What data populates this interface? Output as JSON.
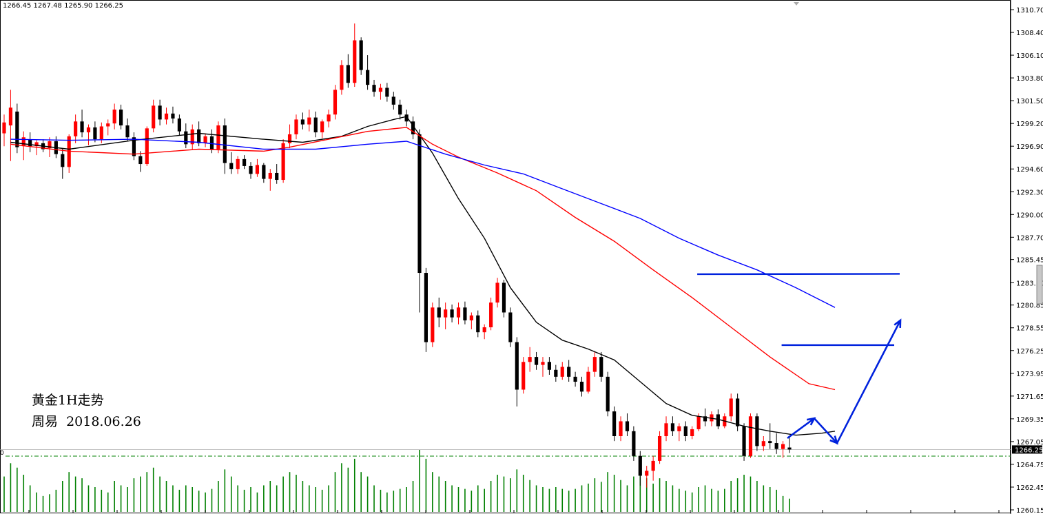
{
  "ohlc_header": "1266.45 1267.48 1265.90 1266.25",
  "annotation": {
    "line1": "黄金1H走势",
    "line2": "周易  2018.06.26"
  },
  "price_label": "1266.25",
  "volume_scale_label": "0",
  "colors": {
    "bull": "#ff0000",
    "bear": "#000000",
    "ma_black": "#000000",
    "ma_red": "#ff0000",
    "ma_blue": "#0000ff",
    "drawing": "#0022dd",
    "volume": "#008000",
    "price_box": "#000000"
  },
  "chart_data": {
    "type": "candlestick",
    "title": "",
    "symbol_name": "黄金",
    "timeframe": "1H",
    "ylim": [
      1260.15,
      1311.5
    ],
    "yticks": [
      "1310.70",
      "1308.40",
      "1306.10",
      "1303.80",
      "1301.50",
      "1299.20",
      "1296.90",
      "1294.60",
      "1292.30",
      "1290.00",
      "1287.70",
      "1285.45",
      "1283.10",
      "1280.85",
      "1278.55",
      "1276.25",
      "1273.95",
      "1271.65",
      "1269.35",
      "1267.05",
      "1264.75",
      "1262.45",
      "1260.15"
    ],
    "current_price": 1266.25,
    "last_bar": {
      "open": 1266.45,
      "high": 1267.48,
      "low": 1265.9,
      "close": 1266.25
    },
    "bars": [
      [
        1298.2,
        1300.1,
        1296.9,
        1299.3,
        40
      ],
      [
        1299.0,
        1302.6,
        1295.4,
        1300.8,
        55
      ],
      [
        1300.4,
        1301.2,
        1296.2,
        1296.8,
        50
      ],
      [
        1296.9,
        1298.4,
        1295.5,
        1297.8,
        42
      ],
      [
        1297.6,
        1298.3,
        1296.3,
        1296.9,
        30
      ],
      [
        1296.9,
        1297.5,
        1296.0,
        1297.3,
        22
      ],
      [
        1297.2,
        1297.6,
        1296.3,
        1296.6,
        18
      ],
      [
        1296.7,
        1297.8,
        1295.8,
        1297.4,
        20
      ],
      [
        1297.4,
        1297.9,
        1295.7,
        1296.1,
        25
      ],
      [
        1296.1,
        1296.7,
        1293.6,
        1294.8,
        35
      ],
      [
        1294.8,
        1298.1,
        1294.2,
        1297.9,
        45
      ],
      [
        1297.9,
        1300.1,
        1297.2,
        1299.4,
        40
      ],
      [
        1299.4,
        1300.6,
        1297.8,
        1298.3,
        38
      ],
      [
        1298.3,
        1299.1,
        1297.0,
        1298.8,
        30
      ],
      [
        1298.8,
        1299.4,
        1297.3,
        1297.6,
        28
      ],
      [
        1297.6,
        1299.3,
        1297.2,
        1298.9,
        25
      ],
      [
        1298.9,
        1299.6,
        1298.0,
        1299.2,
        22
      ],
      [
        1299.2,
        1301.2,
        1298.6,
        1300.6,
        35
      ],
      [
        1300.6,
        1301.1,
        1298.6,
        1299.0,
        30
      ],
      [
        1299.0,
        1299.7,
        1297.4,
        1297.8,
        28
      ],
      [
        1297.8,
        1298.3,
        1295.5,
        1295.9,
        38
      ],
      [
        1295.9,
        1296.4,
        1294.3,
        1295.1,
        40
      ],
      [
        1295.1,
        1298.9,
        1294.9,
        1298.7,
        45
      ],
      [
        1298.7,
        1301.6,
        1298.3,
        1301.0,
        50
      ],
      [
        1301.0,
        1301.6,
        1299.0,
        1299.6,
        40
      ],
      [
        1299.6,
        1300.8,
        1299.1,
        1300.2,
        35
      ],
      [
        1300.2,
        1300.9,
        1299.2,
        1299.7,
        30
      ],
      [
        1299.7,
        1300.1,
        1298.0,
        1298.4,
        25
      ],
      [
        1298.4,
        1299.2,
        1296.7,
        1297.1,
        30
      ],
      [
        1297.1,
        1299.1,
        1296.6,
        1298.6,
        28
      ],
      [
        1298.6,
        1299.4,
        1296.9,
        1297.2,
        24
      ],
      [
        1297.2,
        1298.2,
        1296.8,
        1297.9,
        22
      ],
      [
        1297.9,
        1298.6,
        1296.2,
        1296.6,
        26
      ],
      [
        1296.6,
        1299.4,
        1296.2,
        1299.0,
        35
      ],
      [
        1299.0,
        1299.7,
        1294.1,
        1295.2,
        48
      ],
      [
        1295.2,
        1296.3,
        1294.1,
        1294.6,
        40
      ],
      [
        1294.6,
        1295.9,
        1294.1,
        1295.6,
        30
      ],
      [
        1295.6,
        1296.0,
        1294.6,
        1294.9,
        25
      ],
      [
        1294.9,
        1295.3,
        1293.6,
        1294.1,
        28
      ],
      [
        1294.1,
        1295.6,
        1293.8,
        1295.0,
        22
      ],
      [
        1295.0,
        1295.2,
        1293.2,
        1293.6,
        30
      ],
      [
        1293.6,
        1294.6,
        1292.4,
        1294.2,
        35
      ],
      [
        1294.2,
        1295.1,
        1293.1,
        1293.5,
        30
      ],
      [
        1293.5,
        1297.6,
        1293.2,
        1297.2,
        40
      ],
      [
        1297.2,
        1299.1,
        1296.7,
        1298.1,
        45
      ],
      [
        1298.1,
        1300.1,
        1297.6,
        1299.6,
        42
      ],
      [
        1299.6,
        1300.3,
        1298.6,
        1299.1,
        35
      ],
      [
        1299.1,
        1300.6,
        1298.4,
        1299.8,
        30
      ],
      [
        1299.8,
        1300.4,
        1297.8,
        1298.3,
        28
      ],
      [
        1298.3,
        1299.6,
        1297.7,
        1299.4,
        25
      ],
      [
        1299.4,
        1300.6,
        1298.8,
        1300.1,
        30
      ],
      [
        1300.1,
        1303.1,
        1299.6,
        1302.6,
        45
      ],
      [
        1302.6,
        1305.6,
        1302.1,
        1305.1,
        55
      ],
      [
        1305.1,
        1306.2,
        1302.8,
        1303.3,
        50
      ],
      [
        1303.3,
        1309.3,
        1302.9,
        1307.6,
        60
      ],
      [
        1307.6,
        1307.9,
        1304.1,
        1304.6,
        45
      ],
      [
        1304.6,
        1306.1,
        1302.6,
        1303.1,
        40
      ],
      [
        1303.1,
        1303.6,
        1301.9,
        1302.4,
        30
      ],
      [
        1302.4,
        1303.2,
        1301.6,
        1302.8,
        25
      ],
      [
        1302.8,
        1303.3,
        1301.4,
        1301.9,
        22
      ],
      [
        1301.9,
        1302.4,
        1300.6,
        1301.1,
        24
      ],
      [
        1301.1,
        1301.6,
        1299.6,
        1300.1,
        26
      ],
      [
        1300.1,
        1300.6,
        1298.9,
        1299.4,
        28
      ],
      [
        1299.4,
        1299.9,
        1297.6,
        1298.1,
        35
      ],
      [
        1298.1,
        1298.6,
        1280.1,
        1284.1,
        70
      ],
      [
        1284.1,
        1284.6,
        1276.1,
        1277.1,
        60
      ],
      [
        1277.1,
        1281.1,
        1276.6,
        1280.6,
        45
      ],
      [
        1280.6,
        1281.6,
        1278.6,
        1279.6,
        40
      ],
      [
        1279.6,
        1281.1,
        1278.4,
        1280.4,
        35
      ],
      [
        1280.4,
        1280.9,
        1279.1,
        1279.6,
        30
      ],
      [
        1279.6,
        1281.1,
        1278.9,
        1280.6,
        28
      ],
      [
        1280.6,
        1281.2,
        1278.9,
        1279.3,
        26
      ],
      [
        1279.3,
        1280.1,
        1278.4,
        1279.8,
        24
      ],
      [
        1279.8,
        1280.3,
        1277.6,
        1278.1,
        30
      ],
      [
        1278.1,
        1278.9,
        1277.4,
        1278.6,
        26
      ],
      [
        1278.6,
        1281.6,
        1278.3,
        1281.1,
        35
      ],
      [
        1281.1,
        1283.6,
        1280.6,
        1283.1,
        42
      ],
      [
        1283.1,
        1283.4,
        1279.6,
        1280.1,
        40
      ],
      [
        1280.1,
        1280.6,
        1276.6,
        1277.1,
        38
      ],
      [
        1277.1,
        1277.6,
        1270.6,
        1272.3,
        48
      ],
      [
        1272.3,
        1275.6,
        1271.9,
        1275.1,
        42
      ],
      [
        1275.1,
        1276.6,
        1274.1,
        1275.6,
        36
      ],
      [
        1275.6,
        1276.1,
        1274.3,
        1274.8,
        30
      ],
      [
        1274.8,
        1275.6,
        1273.6,
        1275.1,
        28
      ],
      [
        1275.1,
        1275.6,
        1273.8,
        1274.3,
        26
      ],
      [
        1274.3,
        1274.8,
        1273.1,
        1273.6,
        28
      ],
      [
        1273.6,
        1275.1,
        1273.3,
        1274.6,
        26
      ],
      [
        1274.6,
        1275.3,
        1273.1,
        1273.6,
        24
      ],
      [
        1273.6,
        1274.1,
        1272.6,
        1273.1,
        26
      ],
      [
        1273.1,
        1273.6,
        1271.6,
        1272.1,
        30
      ],
      [
        1272.1,
        1274.6,
        1271.9,
        1274.1,
        32
      ],
      [
        1274.1,
        1276.1,
        1273.6,
        1275.6,
        38
      ],
      [
        1275.6,
        1276.1,
        1273.1,
        1273.6,
        34
      ],
      [
        1273.6,
        1274.1,
        1269.6,
        1270.1,
        45
      ],
      [
        1270.1,
        1270.6,
        1267.1,
        1267.6,
        42
      ],
      [
        1267.6,
        1269.6,
        1267.1,
        1269.1,
        36
      ],
      [
        1269.1,
        1269.9,
        1267.6,
        1268.1,
        30
      ],
      [
        1268.1,
        1268.6,
        1265.1,
        1265.6,
        40
      ],
      [
        1265.6,
        1266.1,
        1262.6,
        1263.6,
        45
      ],
      [
        1263.6,
        1264.6,
        1262.4,
        1264.1,
        38
      ],
      [
        1264.1,
        1265.6,
        1263.1,
        1265.1,
        32
      ],
      [
        1265.1,
        1268.1,
        1264.8,
        1267.6,
        38
      ],
      [
        1267.6,
        1269.6,
        1267.1,
        1268.9,
        35
      ],
      [
        1268.9,
        1269.6,
        1267.6,
        1268.1,
        30
      ],
      [
        1268.1,
        1268.9,
        1267.1,
        1268.6,
        26
      ],
      [
        1268.6,
        1269.1,
        1267.1,
        1267.6,
        24
      ],
      [
        1267.6,
        1268.6,
        1267.3,
        1268.3,
        22
      ],
      [
        1268.3,
        1269.9,
        1268.1,
        1269.6,
        28
      ],
      [
        1269.6,
        1270.4,
        1268.6,
        1269.1,
        30
      ],
      [
        1269.1,
        1270.1,
        1268.6,
        1269.8,
        26
      ],
      [
        1269.8,
        1270.3,
        1268.3,
        1268.6,
        24
      ],
      [
        1268.6,
        1269.9,
        1268.4,
        1269.6,
        26
      ],
      [
        1269.6,
        1271.9,
        1269.1,
        1271.4,
        35
      ],
      [
        1271.4,
        1271.9,
        1268.1,
        1268.6,
        38
      ],
      [
        1268.6,
        1268.9,
        1265.1,
        1265.6,
        42
      ],
      [
        1265.6,
        1269.9,
        1265.4,
        1269.6,
        40
      ],
      [
        1269.6,
        1269.9,
        1266.1,
        1266.6,
        35
      ],
      [
        1266.6,
        1267.6,
        1266.1,
        1267.1,
        30
      ],
      [
        1267.1,
        1268.9,
        1266.3,
        1266.9,
        28
      ],
      [
        1266.9,
        1267.9,
        1265.8,
        1266.3,
        25
      ],
      [
        1266.3,
        1267.1,
        1265.4,
        1266.8,
        18
      ],
      [
        1266.45,
        1267.48,
        1265.9,
        1266.25,
        15
      ]
    ],
    "moving_averages": [
      {
        "color": "black",
        "points": [
          [
            1,
            1297.3
          ],
          [
            10,
            1296.6
          ],
          [
            20,
            1297.5
          ],
          [
            30,
            1298.2
          ],
          [
            40,
            1297.6
          ],
          [
            46,
            1297.3
          ],
          [
            52,
            1297.9
          ],
          [
            56,
            1298.9
          ],
          [
            60,
            1299.6
          ],
          [
            62,
            1299.9
          ],
          [
            66,
            1296.2
          ],
          [
            70,
            1291.6
          ],
          [
            74,
            1287.6
          ],
          [
            78,
            1282.6
          ],
          [
            82,
            1279.1
          ],
          [
            86,
            1277.3
          ],
          [
            90,
            1276.4
          ],
          [
            94,
            1275.3
          ],
          [
            98,
            1273.1
          ],
          [
            102,
            1270.9
          ],
          [
            106,
            1269.7
          ],
          [
            110,
            1269.3
          ],
          [
            114,
            1268.6
          ],
          [
            118,
            1268.1
          ],
          [
            122,
            1267.7
          ],
          [
            126,
            1267.9
          ],
          [
            128,
            1268.1
          ]
        ]
      },
      {
        "color": "red",
        "points": [
          [
            1,
            1297.1
          ],
          [
            10,
            1296.4
          ],
          [
            20,
            1296.1
          ],
          [
            30,
            1296.6
          ],
          [
            40,
            1296.4
          ],
          [
            44,
            1296.8
          ],
          [
            50,
            1297.6
          ],
          [
            56,
            1298.4
          ],
          [
            62,
            1298.8
          ],
          [
            66,
            1297.1
          ],
          [
            70,
            1295.8
          ],
          [
            76,
            1294.2
          ],
          [
            82,
            1292.4
          ],
          [
            88,
            1289.7
          ],
          [
            94,
            1287.3
          ],
          [
            100,
            1284.4
          ],
          [
            106,
            1281.6
          ],
          [
            112,
            1278.6
          ],
          [
            118,
            1275.6
          ],
          [
            124,
            1272.9
          ],
          [
            128,
            1272.3
          ]
        ]
      },
      {
        "color": "blue",
        "points": [
          [
            1,
            1297.6
          ],
          [
            10,
            1297.5
          ],
          [
            20,
            1297.6
          ],
          [
            30,
            1297.3
          ],
          [
            40,
            1296.6
          ],
          [
            48,
            1296.6
          ],
          [
            56,
            1297.1
          ],
          [
            62,
            1297.4
          ],
          [
            68,
            1296.1
          ],
          [
            74,
            1295.0
          ],
          [
            80,
            1294.1
          ],
          [
            86,
            1292.6
          ],
          [
            92,
            1291.1
          ],
          [
            98,
            1289.6
          ],
          [
            104,
            1287.6
          ],
          [
            110,
            1285.9
          ],
          [
            116,
            1284.4
          ],
          [
            122,
            1282.6
          ],
          [
            128,
            1280.6
          ]
        ]
      }
    ],
    "horizontal_levels": [
      1284.0,
      1276.8
    ],
    "projection_path": [
      [
        1267.4
      ],
      [
        1269.4
      ],
      [
        1266.9
      ],
      [
        1279.3
      ]
    ],
    "volume_baseline_label": "0"
  }
}
